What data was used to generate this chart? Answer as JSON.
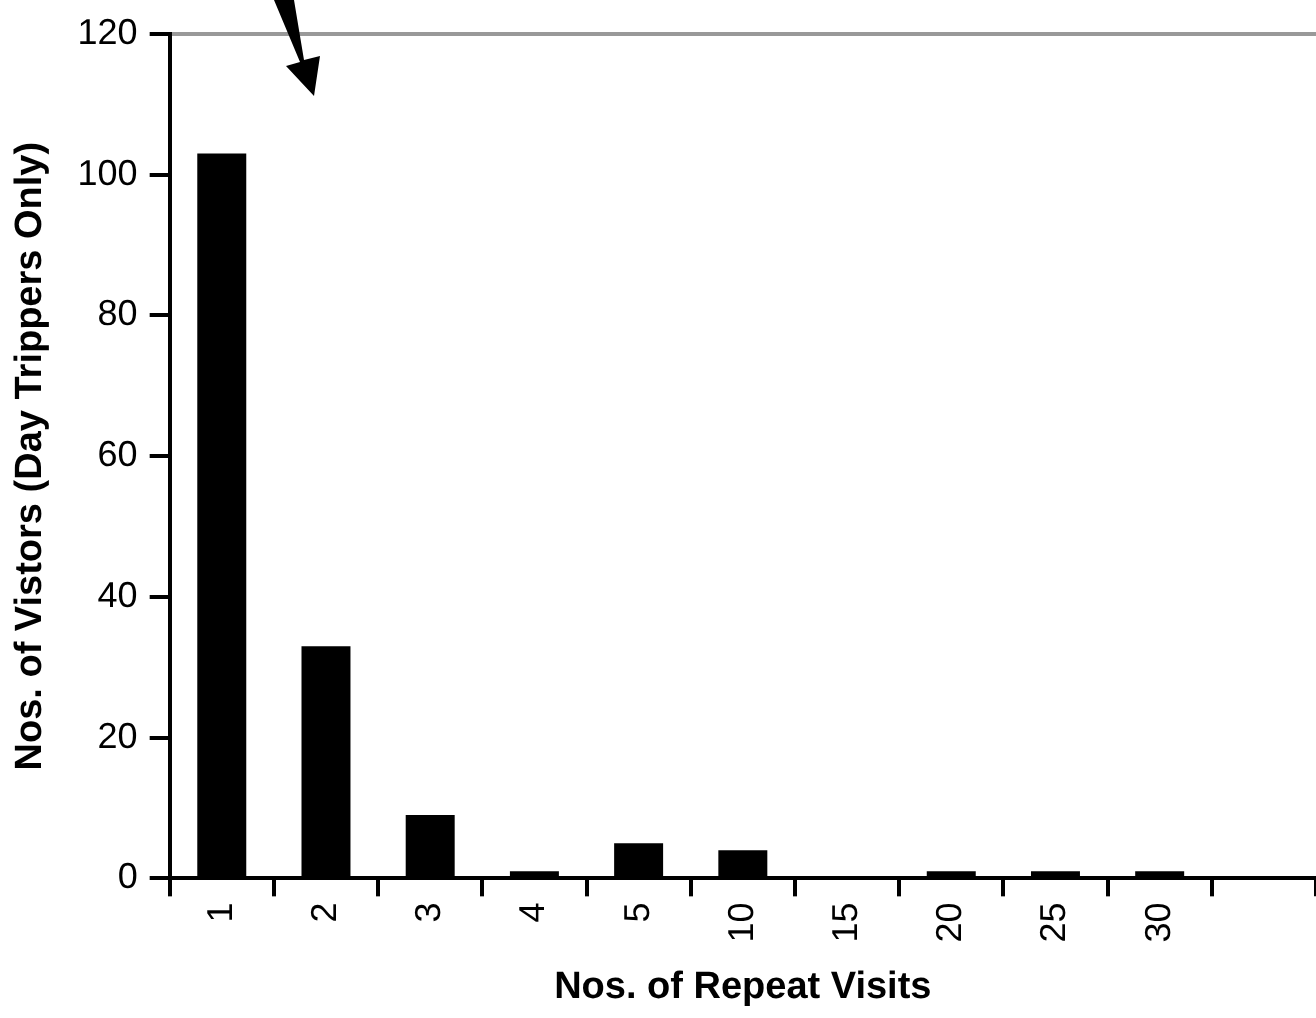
{
  "chart_data": {
    "type": "bar",
    "xlabel": "Nos. of Repeat Visits",
    "ylabel": "Nos. of Vistors (Day Trippers Only)",
    "categories": [
      "1",
      "2",
      "3",
      "4",
      "5",
      "10",
      "15",
      "20",
      "25",
      "30",
      null
    ],
    "values": [
      103,
      33,
      9,
      1,
      5,
      4,
      0,
      1,
      1,
      1,
      null
    ],
    "color": "#000000",
    "ylim": [
      0,
      120
    ],
    "yticks": [
      0,
      20,
      40,
      60,
      80,
      100,
      120
    ],
    "grid": false,
    "legend": false
  }
}
